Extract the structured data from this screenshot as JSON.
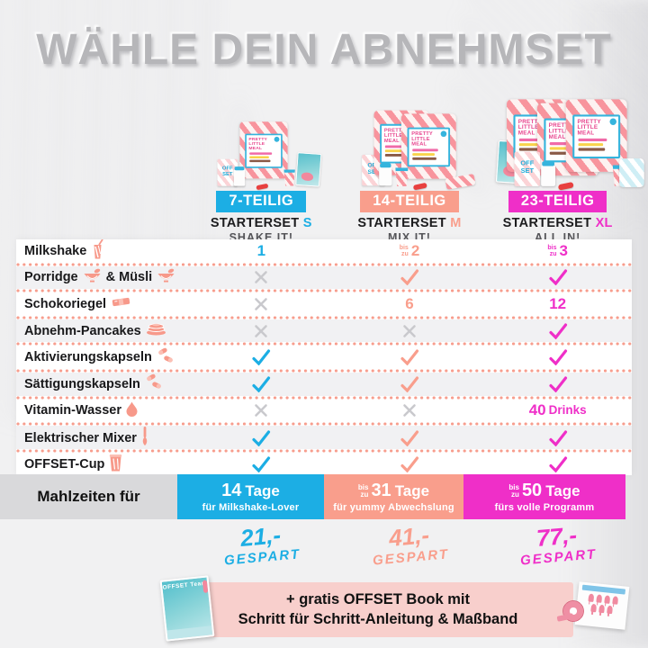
{
  "title": "WÄHLE DEIN ABNEHMSET",
  "colors": {
    "cyan": "#1caee4",
    "salmon": "#f99e8c",
    "magenta": "#ef2fc8",
    "cross_gray": "#c9c9cd",
    "dotted_separator": "#f79d8d",
    "banner_pink": "#f8cfcc",
    "label_bar_gray": "#d9d9db",
    "title_gray": "#b6b6b9"
  },
  "product": {
    "bag_label": "PRETTY LITTLE MEAL",
    "box_label_line1": "OFF",
    "box_label_line2": "SET"
  },
  "columns": [
    {
      "badge": "7-TEILIG",
      "set": "STARTERSET",
      "letter": "S",
      "tagline": "SHAKE IT!",
      "bags": 1
    },
    {
      "badge": "14-TEILIG",
      "set": "STARTERSET",
      "letter": "M",
      "tagline": "MIX IT!",
      "bags": 2
    },
    {
      "badge": "23-TEILIG",
      "set": "STARTERSET",
      "letter": "XL",
      "tagline": "ALL IN!",
      "bags": 3
    }
  ],
  "rows": [
    {
      "label": [
        {
          "t": "Milkshake"
        },
        {
          "i": "milkshake"
        }
      ],
      "values": [
        {
          "kind": "num",
          "text": "1"
        },
        {
          "kind": "num",
          "pre": "bis zu",
          "text": "2"
        },
        {
          "kind": "num",
          "pre": "bis zu",
          "text": "3"
        }
      ]
    },
    {
      "label": [
        {
          "t": "Porridge"
        },
        {
          "i": "bowl"
        },
        {
          "t": "& Müsli"
        },
        {
          "i": "bowl"
        }
      ],
      "values": [
        {
          "kind": "cross"
        },
        {
          "kind": "check"
        },
        {
          "kind": "check"
        }
      ]
    },
    {
      "label": [
        {
          "t": "Schokoriegel"
        },
        {
          "i": "bar"
        }
      ],
      "values": [
        {
          "kind": "cross"
        },
        {
          "kind": "num",
          "text": "6"
        },
        {
          "kind": "num",
          "text": "12"
        }
      ]
    },
    {
      "label": [
        {
          "t": "Abnehm-Pancakes"
        },
        {
          "i": "pancakes"
        }
      ],
      "values": [
        {
          "kind": "cross"
        },
        {
          "kind": "cross"
        },
        {
          "kind": "check"
        }
      ]
    },
    {
      "label": [
        {
          "t": "Aktivierungskapseln"
        },
        {
          "i": "capsules"
        }
      ],
      "values": [
        {
          "kind": "check"
        },
        {
          "kind": "check"
        },
        {
          "kind": "check"
        }
      ]
    },
    {
      "label": [
        {
          "t": "Sättigungskapseln"
        },
        {
          "i": "capsules"
        }
      ],
      "values": [
        {
          "kind": "check"
        },
        {
          "kind": "check"
        },
        {
          "kind": "check"
        }
      ]
    },
    {
      "label": [
        {
          "t": "Vitamin-Wasser"
        },
        {
          "i": "droplet"
        }
      ],
      "values": [
        {
          "kind": "cross"
        },
        {
          "kind": "cross"
        },
        {
          "kind": "num",
          "text": "40",
          "suffix": "Drinks"
        }
      ]
    },
    {
      "label": [
        {
          "t": "Elektrischer Mixer"
        },
        {
          "i": "mixer"
        }
      ],
      "values": [
        {
          "kind": "check"
        },
        {
          "kind": "check"
        },
        {
          "kind": "check"
        }
      ]
    },
    {
      "label": [
        {
          "t": "OFFSET-Cup"
        },
        {
          "i": "cup"
        }
      ],
      "values": [
        {
          "kind": "check"
        },
        {
          "kind": "check"
        },
        {
          "kind": "check"
        }
      ]
    }
  ],
  "footer": {
    "label": "Mahlzeiten für",
    "boxes": [
      {
        "big": "14",
        "unit": "Tage",
        "sub": "für Milkshake-Lover"
      },
      {
        "pre": "bis zu",
        "big": "31",
        "unit": "Tage",
        "sub": "für yummy Abwechslung"
      },
      {
        "pre": "bis zu",
        "big": "50",
        "unit": "Tage",
        "sub": "fürs volle Programm"
      }
    ]
  },
  "savings": [
    {
      "amount": "21,-",
      "label": "GESPART"
    },
    {
      "amount": "41,-",
      "label": "GESPART"
    },
    {
      "amount": "77,-",
      "label": "GESPART"
    }
  ],
  "banner": {
    "line1": "+ gratis OFFSET Book mit",
    "line2": "Schritt für Schritt-Anleitung & Maßband",
    "book_title": "OFFSET Team"
  }
}
